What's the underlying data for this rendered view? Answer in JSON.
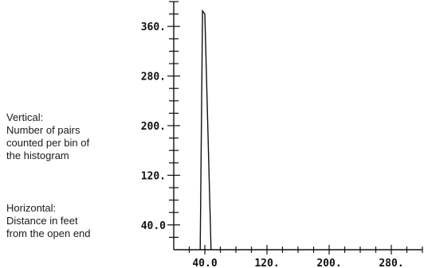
{
  "captions": {
    "vertical": [
      "Vertical:",
      "Number of pairs",
      "counted per bin of",
      "the histogram"
    ],
    "horizontal": [
      "Horizontal:",
      "Distance in feet",
      "from the open end"
    ]
  },
  "chart_data": {
    "type": "line",
    "title": "",
    "xlabel": "",
    "ylabel": "",
    "x": [
      34,
      37,
      40,
      48
    ],
    "y": [
      0,
      385,
      380,
      0
    ],
    "xlim": [
      0,
      320
    ],
    "ylim": [
      0,
      400
    ],
    "x_ticks": [
      40,
      120,
      200,
      280
    ],
    "x_tick_labels": [
      "40.0",
      "120.",
      "200.",
      "280."
    ],
    "y_ticks": [
      40,
      120,
      200,
      280,
      360
    ],
    "y_tick_labels": [
      "40.0",
      "120.",
      "200.",
      "280.",
      "360."
    ],
    "x_minor_step": 20,
    "y_minor_step": 20,
    "grid": false,
    "line_color": "#111111"
  }
}
